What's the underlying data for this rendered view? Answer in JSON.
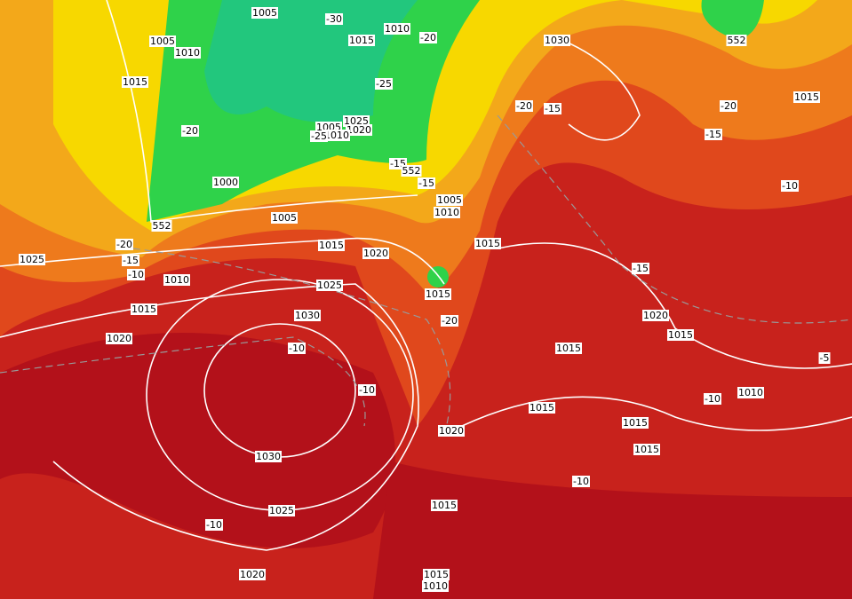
{
  "labels": [
    "1005",
    "-30",
    "1015",
    "1010",
    "-20",
    "1005",
    "1010",
    "1015",
    "-25",
    "1025",
    "1005",
    "1020",
    "1010",
    "-20",
    "-25",
    "-15",
    "552",
    "-15",
    "1000",
    "1005",
    "1010",
    "1005",
    "552",
    "-20",
    "-15",
    "-10",
    "1025",
    "1015",
    "1020",
    "1010",
    "1015",
    "1025",
    "1015",
    "1030",
    "-20",
    "1020",
    "-10",
    "-10",
    "1030",
    "1025",
    "-10",
    "1020",
    "-20",
    "-15",
    "1030",
    "552",
    "1015",
    "-20",
    "-15",
    "-10",
    "1015",
    "-15",
    "1020",
    "1015",
    "1015",
    "-10",
    "1010",
    "-5",
    "1015",
    "1015",
    "1020",
    "1015",
    "-10",
    "1015",
    "1015",
    "1010"
  ]
}
